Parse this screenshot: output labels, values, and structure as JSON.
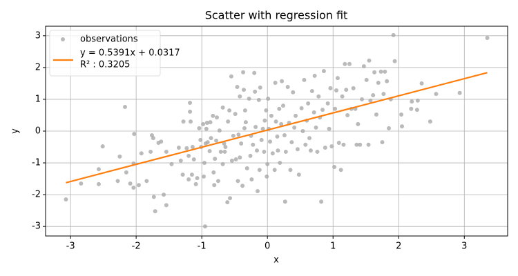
{
  "chart_data": {
    "type": "scatter",
    "title": "Scatter with regression fit",
    "x_label": "x",
    "y_label": "y",
    "xlim": [
      -3.38,
      3.66
    ],
    "ylim": [
      -3.3,
      3.3
    ],
    "xticks": [
      -3,
      -2,
      -1,
      0,
      1,
      2,
      3
    ],
    "yticks": [
      -3,
      -2,
      -1,
      0,
      1,
      2,
      3
    ],
    "grid": true,
    "legend": "upper left",
    "r2_label": "R² : 0.3205",
    "series": [
      {
        "name": "observations",
        "type": "scatter",
        "color": "#a9a9a9",
        "x": [
          -3.07,
          -2.84,
          -2.57,
          -2.51,
          -2.57,
          -2.28,
          -2.25,
          -2.17,
          -2.15,
          -2.09,
          -2.04,
          -2.03,
          -2.04,
          -1.96,
          -1.92,
          -1.84,
          -1.78,
          -1.76,
          -1.74,
          -1.73,
          -1.71,
          -1.66,
          -1.62,
          -1.58,
          -1.54,
          -1.54,
          -1.46,
          -1.35,
          -1.32,
          -1.28,
          -1.29,
          -1.23,
          -1.2,
          -1.2,
          -1.18,
          -1.18,
          -1.17,
          -1.15,
          -1.14,
          -1.12,
          -1.09,
          -1.07,
          -1.04,
          -1.02,
          -1.01,
          -0.98,
          -0.97,
          -0.96,
          -0.95,
          -0.94,
          -0.93,
          -0.92,
          -0.91,
          -0.88,
          -0.87,
          -0.86,
          -0.83,
          -0.82,
          -0.81,
          -0.8,
          -0.78,
          -0.77,
          -0.75,
          -0.73,
          -0.71,
          -0.68,
          -0.68,
          -0.66,
          -0.65,
          -0.64,
          -0.61,
          -0.6,
          -0.58,
          -0.57,
          -0.55,
          -0.54,
          -0.52,
          -0.49,
          -0.48,
          -0.46,
          -0.45,
          -0.44,
          -0.42,
          -0.42,
          -0.4,
          -0.38,
          -0.37,
          -0.36,
          -0.35,
          -0.34,
          -0.33,
          -0.31,
          -0.28,
          -0.26,
          -0.25,
          -0.24,
          -0.22,
          -0.2,
          -0.19,
          -0.18,
          -0.16,
          -0.15,
          -0.13,
          -0.12,
          -0.11,
          -0.09,
          -0.07,
          -0.05,
          -0.04,
          -0.02,
          -0.01,
          0.0,
          0.01,
          0.02,
          0.04,
          0.06,
          0.08,
          0.11,
          0.12,
          0.13,
          0.15,
          0.16,
          0.18,
          0.19,
          0.21,
          0.22,
          0.24,
          0.26,
          0.27,
          0.28,
          0.31,
          0.33,
          0.35,
          0.37,
          0.39,
          0.41,
          0.43,
          0.46,
          0.48,
          0.52,
          0.54,
          0.56,
          0.58,
          0.6,
          0.62,
          0.64,
          0.66,
          0.68,
          0.71,
          0.72,
          0.74,
          0.76,
          0.78,
          0.8,
          0.82,
          0.84,
          0.86,
          0.88,
          0.92,
          0.94,
          0.96,
          0.98,
          1.02,
          1.03,
          1.05,
          1.07,
          1.09,
          1.12,
          1.14,
          1.16,
          1.18,
          1.2,
          1.22,
          1.25,
          1.28,
          1.31,
          1.34,
          1.36,
          1.38,
          1.41,
          1.44,
          1.47,
          1.51,
          1.54,
          1.55,
          1.57,
          1.61,
          1.63,
          1.66,
          1.69,
          1.73,
          1.75,
          1.77,
          1.79,
          1.82,
          1.85,
          1.88,
          1.92,
          1.94,
          2.04,
          2.05,
          2.19,
          2.2,
          2.28,
          2.29,
          2.35,
          2.48,
          2.57,
          2.93,
          3.35
        ],
        "values": [
          -2.15,
          -1.65,
          -1.2,
          -0.48,
          -1.67,
          -1.57,
          -0.8,
          0.76,
          -1.3,
          -1.65,
          -1.78,
          -0.09,
          -1.02,
          -1.7,
          -0.7,
          -1.57,
          -0.65,
          -0.13,
          -0.22,
          -2.07,
          -2.52,
          -0.37,
          -0.33,
          -2.0,
          -2.33,
          -0.65,
          -1.04,
          -0.52,
          -0.93,
          0.3,
          -1.37,
          -0.54,
          -0.78,
          -1.52,
          0.89,
          0.61,
          0.3,
          -1.37,
          -0.5,
          -0.89,
          -1.67,
          -1.48,
          0.09,
          -0.28,
          -0.5,
          0.22,
          -1.43,
          -1.0,
          -3.0,
          -0.39,
          0.07,
          0.26,
          -0.35,
          -0.63,
          0.28,
          -0.22,
          0.48,
          -1.3,
          -1.7,
          -0.87,
          -0.3,
          0.43,
          -1.57,
          0.02,
          -0.65,
          0.74,
          -1.04,
          -0.39,
          -0.65,
          -0.5,
          -2.24,
          0.3,
          0.65,
          -2.11,
          1.72,
          -0.93,
          -0.15,
          0.54,
          -0.89,
          1.39,
          -1.57,
          -0.11,
          1.09,
          -0.83,
          -0.39,
          -1.72,
          1.85,
          1.3,
          0.09,
          0.65,
          0.28,
          -1.17,
          1.02,
          -0.78,
          -0.15,
          -1.52,
          -0.43,
          1.83,
          1.24,
          0.13,
          -0.61,
          -1.89,
          0.98,
          -1.22,
          1.37,
          -0.28,
          0.07,
          -0.65,
          0.33,
          0.65,
          -1.43,
          -1.04,
          1.02,
          0.07,
          -0.33,
          0.48,
          -0.7,
          -1.22,
          1.52,
          0.3,
          -0.17,
          -0.61,
          0.7,
          -1.0,
          0.22,
          1.57,
          0.8,
          -0.13,
          -2.22,
          -0.65,
          1.39,
          0.26,
          -1.22,
          -0.35,
          1.22,
          0.11,
          0.48,
          -0.57,
          -1.37,
          0.72,
          0.0,
          1.61,
          -0.43,
          0.33,
          0.87,
          -0.22,
          -0.61,
          1.26,
          0.59,
          1.74,
          0.11,
          -0.65,
          1.09,
          0.43,
          -2.22,
          0.67,
          1.89,
          -0.52,
          0.87,
          0.07,
          1.35,
          -0.48,
          -1.13,
          0.7,
          1.28,
          1.67,
          -0.37,
          -1.22,
          1.09,
          -0.43,
          2.11,
          1.3,
          0.5,
          2.11,
          0.7,
          1.35,
          0.7,
          -0.43,
          0.22,
          -0.43,
          1.0,
          2.04,
          1.61,
          -0.43,
          2.22,
          0.96,
          1.13,
          1.85,
          0.52,
          1.52,
          1.87,
          -0.35,
          1.17,
          1.87,
          1.57,
          0.09,
          1.0,
          3.02,
          2.2,
          0.52,
          0.15,
          0.7,
          0.93,
          0.67,
          0.96,
          1.5,
          0.3,
          1.17,
          1.2,
          2.93
        ]
      },
      {
        "name": "y = 0.5391x + 0.0317",
        "type": "line",
        "color": "#ff7f0e",
        "x": [
          -3.07,
          3.35
        ],
        "values": [
          -1.623,
          1.838
        ]
      }
    ]
  }
}
